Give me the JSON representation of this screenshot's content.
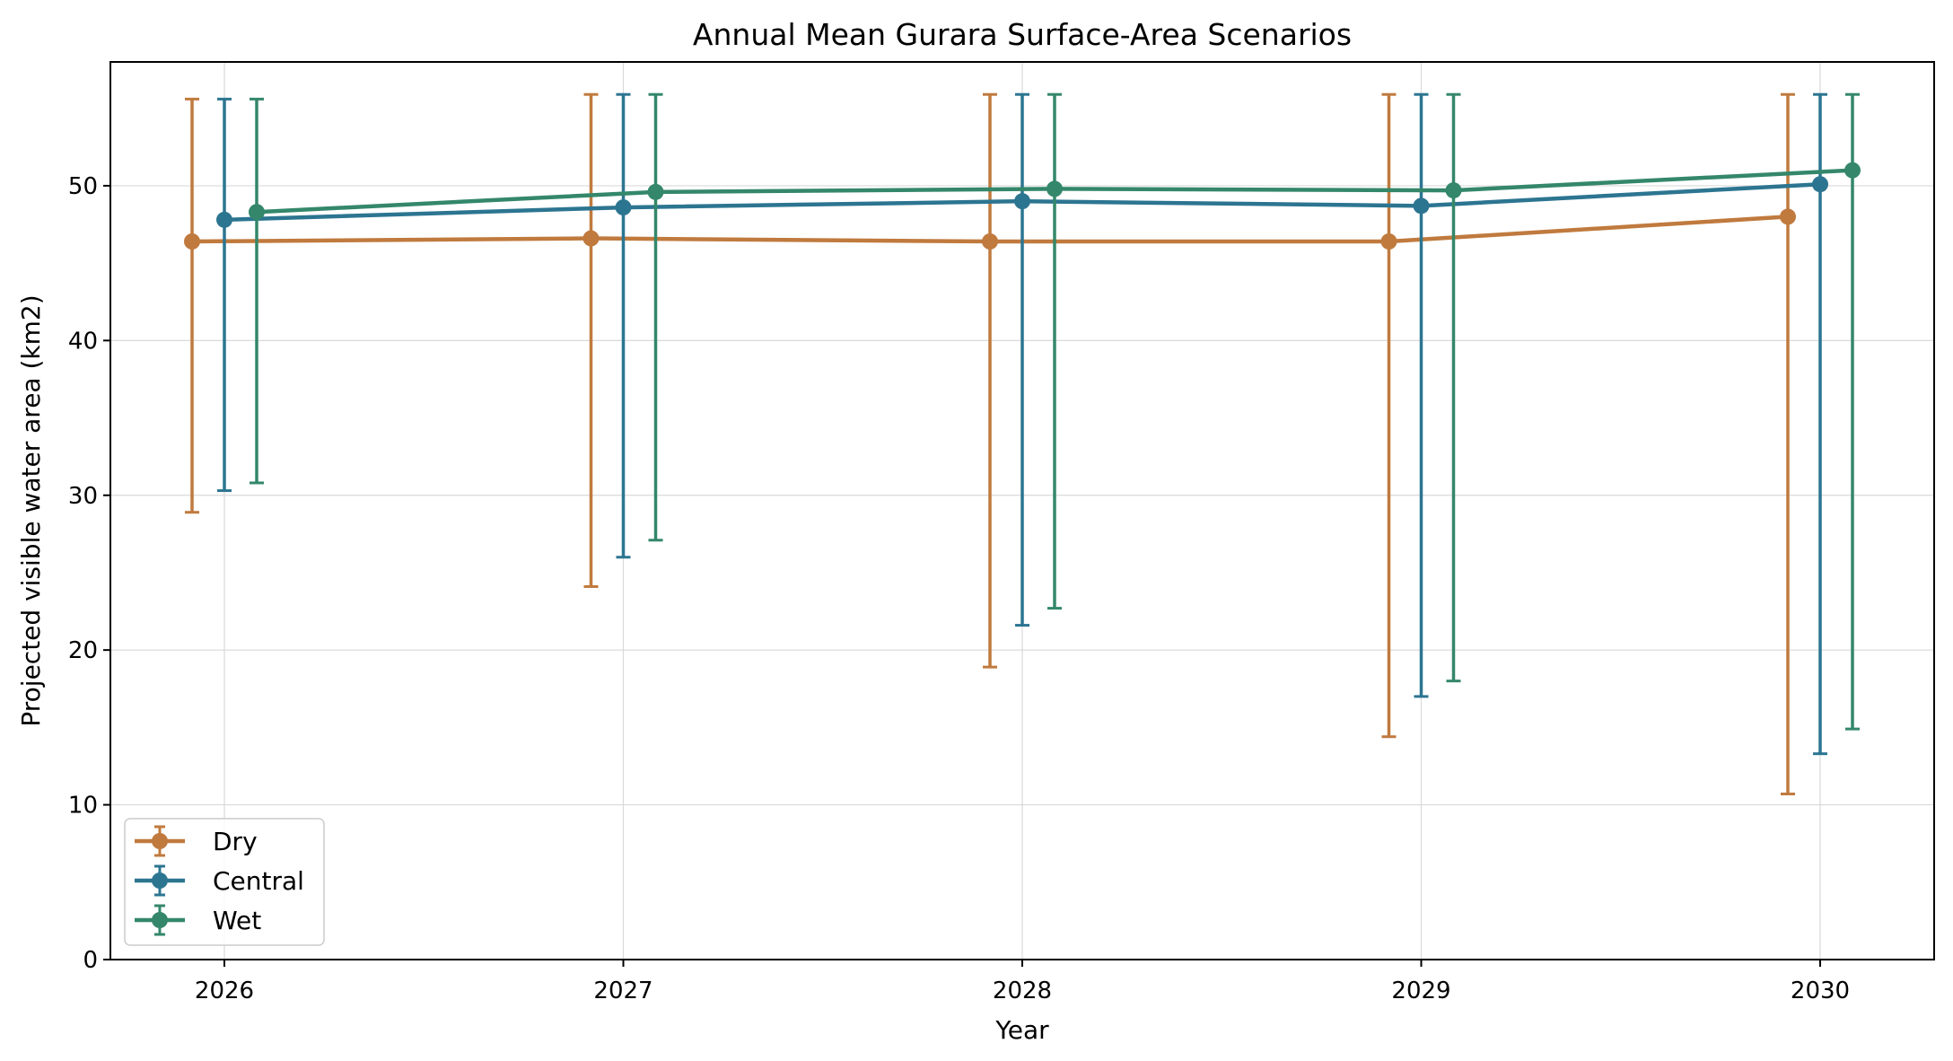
{
  "chart_data": {
    "type": "line",
    "title": "Annual Mean Gurara Surface-Area Scenarios",
    "xlabel": "Year",
    "ylabel": "Projected visible water area (km2)",
    "categories": [
      "2026",
      "2027",
      "2028",
      "2029",
      "2030"
    ],
    "ylim": [
      0,
      58
    ],
    "yticks": [
      0,
      10,
      20,
      30,
      40,
      50
    ],
    "grid": true,
    "legend_position": "lower-left",
    "series": [
      {
        "name": "Dry",
        "color": "#c07a3e",
        "values": [
          46.4,
          46.6,
          46.4,
          46.4,
          48.0
        ],
        "error_low": [
          28.9,
          24.1,
          18.9,
          14.4,
          10.7
        ],
        "error_high": [
          55.6,
          55.9,
          55.9,
          55.9,
          55.9
        ]
      },
      {
        "name": "Central",
        "color": "#2c7591",
        "values": [
          47.8,
          48.6,
          49.0,
          48.7,
          50.1
        ],
        "error_low": [
          30.3,
          26.0,
          21.6,
          17.0,
          13.3
        ],
        "error_high": [
          55.6,
          55.9,
          55.9,
          55.9,
          55.9
        ]
      },
      {
        "name": "Wet",
        "color": "#34876a",
        "values": [
          48.3,
          49.6,
          49.8,
          49.7,
          51.0
        ],
        "error_low": [
          30.8,
          27.1,
          22.7,
          18.0,
          14.9
        ],
        "error_high": [
          55.6,
          55.9,
          55.9,
          55.9,
          55.9
        ]
      }
    ]
  }
}
